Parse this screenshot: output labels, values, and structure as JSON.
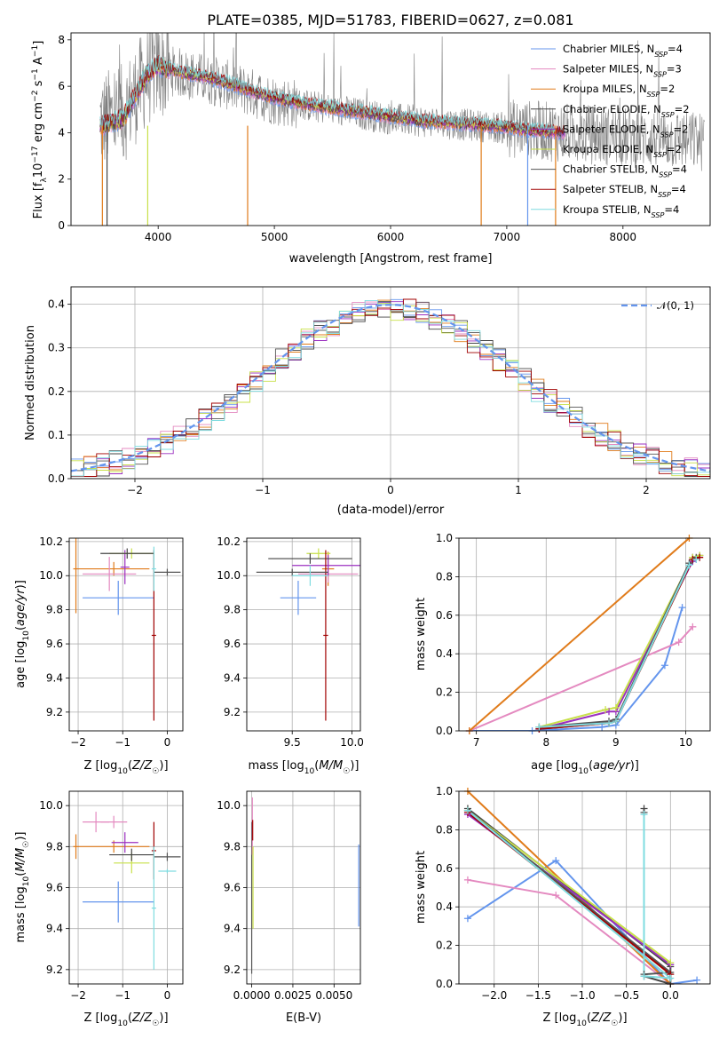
{
  "chart_data": [
    {
      "type": "line",
      "title": "PLATE=0385, MJD=51783, FIBERID=0627, z=0.081",
      "xlabel": "wavelength [Angstrom, rest frame]",
      "ylabel": "Flux [f_λ 10^-17 erg cm^-2 s^-1 A^-1]",
      "xlim": [
        3250,
        8750
      ],
      "ylim": [
        0,
        8.3
      ],
      "xticks": [
        "4000",
        "5000",
        "6000",
        "7000",
        "8000"
      ],
      "yticks": [
        "0",
        "2",
        "4",
        "6",
        "8"
      ],
      "grid": false,
      "legend_position": "top-right",
      "data_range": [
        3500,
        8700
      ],
      "series": [
        {
          "name": "Chabrier MILES, N_SSP=4",
          "color": "#6495ed"
        },
        {
          "name": "Salpeter MILES, N_SSP=3",
          "color": "#e48ac0"
        },
        {
          "name": "Kroupa MILES, N_SSP=2",
          "color": "#e07b1a"
        },
        {
          "name": "Chabrier ELODIE, N_SSP=2",
          "color": "#444444"
        },
        {
          "name": "Salpeter ELODIE, N_SSP=2",
          "color": "#9b30c0"
        },
        {
          "name": "Kroupa ELODIE, N_SSP=2",
          "color": "#c8e04a"
        },
        {
          "name": "Chabrier STELIB, N_SSP=4",
          "color": "#555555"
        },
        {
          "name": "Salpeter STELIB, N_SSP=4",
          "color": "#a00000"
        },
        {
          "name": "Kroupa STELIB, N_SSP=4",
          "color": "#7fdce0"
        }
      ],
      "continuum": {
        "x": [
          3500,
          3700,
          3900,
          4000,
          4200,
          4500,
          4800,
          5000,
          5300,
          5600,
          6000,
          6300,
          6600,
          6900,
          7200,
          7500
        ],
        "y": [
          4.3,
          4.6,
          6.5,
          6.9,
          6.6,
          6.3,
          5.8,
          5.5,
          5.2,
          5.0,
          4.7,
          4.5,
          4.4,
          4.3,
          4.1,
          4.0
        ]
      },
      "observed_continuum": {
        "x": [
          3500,
          3700,
          3900,
          4000,
          4500,
          5000,
          5500,
          6000,
          6500,
          7000,
          7500,
          8000,
          8500,
          8700
        ],
        "y": [
          4.5,
          4.8,
          6.4,
          6.8,
          6.2,
          5.4,
          5.0,
          4.6,
          4.4,
          4.2,
          4.0,
          3.8,
          3.7,
          3.6
        ]
      },
      "dropouts": [
        {
          "x": 3520,
          "color": "#e07b1a"
        },
        {
          "x": 3560,
          "color": "#444444"
        },
        {
          "x": 3910,
          "color": "#c8e04a"
        },
        {
          "x": 4770,
          "color": "#e07b1a"
        },
        {
          "x": 6780,
          "color": "#e07b1a"
        },
        {
          "x": 7180,
          "color": "#6495ed"
        },
        {
          "x": 7420,
          "color": "#e07b1a"
        }
      ]
    },
    {
      "type": "line",
      "xlabel": "(data-model)/error",
      "ylabel": "Normed distribution",
      "xlim": [
        -2.5,
        2.5
      ],
      "ylim": [
        0,
        0.44
      ],
      "xticks": [
        "−2",
        "−1",
        "0",
        "1",
        "2"
      ],
      "yticks": [
        "0.0",
        "0.1",
        "0.2",
        "0.3",
        "0.4"
      ],
      "grid": true,
      "legend_position": "top-right",
      "series": [
        {
          "name": "𝒩(0, 1)",
          "color": "#6495ed",
          "style": "dashed",
          "function": "normal_pdf",
          "mu": 0,
          "sigma": 1
        }
      ],
      "histogram_bin_width": 0.1,
      "histogram_colors": [
        "#6495ed",
        "#e48ac0",
        "#e07b1a",
        "#444444",
        "#9b30c0",
        "#c8e04a",
        "#555555",
        "#a00000",
        "#7fdce0"
      ]
    },
    {
      "type": "scatter",
      "xlabel": "Z [log10(Z/Z☉)]",
      "ylabel": "age [log10(age/yr)]",
      "xlim": [
        -2.2,
        0.35
      ],
      "ylim": [
        9.09,
        10.22
      ],
      "xticks": [
        "−2",
        "−1",
        "0"
      ],
      "yticks": [
        "9.2",
        "9.4",
        "9.6",
        "9.8",
        "10.0",
        "10.2"
      ],
      "grid": true,
      "points": [
        {
          "x": -1.1,
          "y": 9.87,
          "xerr": 0.8,
          "yerr": 0.1,
          "color": "#6495ed"
        },
        {
          "x": -2.05,
          "y": 10.04,
          "xerr": 0.06,
          "yerr": 0.26,
          "color": "#e07b1a"
        },
        {
          "x": -1.2,
          "y": 10.04,
          "xerr": 0.8,
          "yerr": 0.04,
          "color": "#e07b1a"
        },
        {
          "x": -1.3,
          "y": 10.01,
          "xerr": 0.6,
          "yerr": 0.1,
          "color": "#e48ac0"
        },
        {
          "x": -0.95,
          "y": 10.05,
          "xerr": 0.1,
          "yerr": 0.1,
          "color": "#9b30c0"
        },
        {
          "x": -0.8,
          "y": 10.13,
          "xerr": 0.5,
          "yerr": 0.03,
          "color": "#c8e04a"
        },
        {
          "x": -0.9,
          "y": 10.13,
          "xerr": 0.6,
          "yerr": 0.03,
          "color": "#444444"
        },
        {
          "x": -0.3,
          "y": 9.65,
          "xerr": 0.05,
          "yerr": 0.5,
          "color": "#a00000"
        },
        {
          "x": 0.0,
          "y": 10.02,
          "xerr": 0.3,
          "yerr": 0.02,
          "color": "#555555"
        },
        {
          "x": -0.3,
          "y": 10.04,
          "xerr": 0.05,
          "yerr": 0.13,
          "color": "#7fdce0"
        }
      ]
    },
    {
      "type": "scatter",
      "xlabel": "mass [log10(M/M☉)]",
      "ylabel": "",
      "xlim": [
        9.12,
        10.07
      ],
      "ylim": [
        9.09,
        10.22
      ],
      "xticks": [
        "9.5",
        "10.0"
      ],
      "yticks": [
        "9.2",
        "9.4",
        "9.6",
        "9.8",
        "10.0",
        "10.2"
      ],
      "grid": true,
      "points": [
        {
          "x": 9.55,
          "y": 9.87,
          "xerr": 0.15,
          "yerr": 0.1,
          "color": "#6495ed"
        },
        {
          "x": 9.8,
          "y": 10.04,
          "xerr": 0.05,
          "yerr": 0.1,
          "color": "#e07b1a"
        },
        {
          "x": 9.8,
          "y": 10.01,
          "xerr": 0.25,
          "yerr": 0.05,
          "color": "#e48ac0"
        },
        {
          "x": 9.8,
          "y": 10.06,
          "xerr": 0.3,
          "yerr": 0.06,
          "color": "#9b30c0"
        },
        {
          "x": 9.72,
          "y": 10.13,
          "xerr": 0.1,
          "yerr": 0.03,
          "color": "#c8e04a"
        },
        {
          "x": 9.65,
          "y": 10.1,
          "xerr": 0.35,
          "yerr": 0.03,
          "color": "#444444"
        },
        {
          "x": 9.78,
          "y": 9.65,
          "xerr": 0.02,
          "yerr": 0.5,
          "color": "#a00000"
        },
        {
          "x": 9.5,
          "y": 10.02,
          "xerr": 0.3,
          "yerr": 0.02,
          "color": "#555555"
        },
        {
          "x": 9.65,
          "y": 10.0,
          "xerr": 0.15,
          "yerr": 0.06,
          "color": "#7fdce0"
        }
      ]
    },
    {
      "type": "line",
      "xlabel": "age [log10(age/yr)]",
      "ylabel": "mass weight",
      "xlim": [
        6.75,
        10.35
      ],
      "ylim": [
        0,
        1.0
      ],
      "xticks": [
        "7",
        "8",
        "9",
        "10"
      ],
      "yticks": [
        "0.0",
        "0.2",
        "0.4",
        "0.6",
        "0.8",
        "1.0"
      ],
      "grid": true,
      "series": [
        {
          "color": "#6495ed",
          "x": [
            6.9,
            7.8,
            8.8,
            9.0,
            9.7,
            9.95
          ],
          "y": [
            0.0,
            0.0,
            0.02,
            0.03,
            0.34,
            0.64
          ]
        },
        {
          "color": "#e48ac0",
          "x": [
            6.9,
            9.9,
            10.1
          ],
          "y": [
            0.0,
            0.46,
            0.54
          ]
        },
        {
          "color": "#e07b1a",
          "x": [
            6.9,
            10.05
          ],
          "y": [
            0.0,
            1.0
          ]
        },
        {
          "color": "#444444",
          "x": [
            7.9,
            8.9,
            9.0,
            10.1,
            10.2
          ],
          "y": [
            0.01,
            0.04,
            0.05,
            0.9,
            0.91
          ]
        },
        {
          "color": "#9b30c0",
          "x": [
            7.9,
            8.9,
            9.0,
            10.1,
            10.15
          ],
          "y": [
            0.01,
            0.1,
            0.1,
            0.88,
            0.89
          ]
        },
        {
          "color": "#c8e04a",
          "x": [
            7.9,
            8.85,
            9.0,
            10.1,
            10.2
          ],
          "y": [
            0.02,
            0.11,
            0.12,
            0.9,
            0.91
          ]
        },
        {
          "color": "#555555",
          "x": [
            7.9,
            8.9,
            9.0,
            10.05,
            10.15
          ],
          "y": [
            0.02,
            0.05,
            0.06,
            0.87,
            0.9
          ]
        },
        {
          "color": "#a00000",
          "x": [
            7.9,
            8.9,
            9.0,
            10.1,
            10.2
          ],
          "y": [
            0.01,
            0.04,
            0.05,
            0.89,
            0.9
          ]
        },
        {
          "color": "#7fdce0",
          "x": [
            7.9,
            8.9,
            9.0,
            10.05,
            10.15
          ],
          "y": [
            0.02,
            0.04,
            0.05,
            0.86,
            0.89
          ]
        }
      ]
    },
    {
      "type": "scatter",
      "xlabel": "Z [log10(Z/Z☉)]",
      "ylabel": "mass [log10(M/M☉)]",
      "xlim": [
        -2.2,
        0.35
      ],
      "ylim": [
        9.13,
        10.07
      ],
      "xticks": [
        "−2",
        "−1",
        "0"
      ],
      "yticks": [
        "9.2",
        "9.4",
        "9.6",
        "9.8",
        "10.0"
      ],
      "grid": true,
      "points": [
        {
          "x": -1.1,
          "y": 9.53,
          "xerr": 0.8,
          "yerr": 0.1,
          "color": "#6495ed"
        },
        {
          "x": -2.05,
          "y": 9.8,
          "xerr": 0.06,
          "yerr": 0.06,
          "color": "#e07b1a"
        },
        {
          "x": -1.2,
          "y": 9.8,
          "xerr": 0.8,
          "yerr": 0.03,
          "color": "#e07b1a"
        },
        {
          "x": -1.6,
          "y": 9.92,
          "xerr": 0.3,
          "yerr": 0.05,
          "color": "#e48ac0"
        },
        {
          "x": -1.2,
          "y": 9.92,
          "xerr": 0.3,
          "yerr": 0.03,
          "color": "#e48ac0"
        },
        {
          "x": -0.95,
          "y": 9.82,
          "xerr": 0.3,
          "yerr": 0.05,
          "color": "#9b30c0"
        },
        {
          "x": -0.8,
          "y": 9.72,
          "xerr": 0.4,
          "yerr": 0.05,
          "color": "#c8e04a"
        },
        {
          "x": -0.8,
          "y": 9.76,
          "xerr": 0.5,
          "yerr": 0.03,
          "color": "#444444"
        },
        {
          "x": -0.3,
          "y": 9.78,
          "xerr": 0.05,
          "yerr": 0.14,
          "color": "#a00000"
        },
        {
          "x": 0.0,
          "y": 9.75,
          "xerr": 0.3,
          "yerr": 0.02,
          "color": "#555555"
        },
        {
          "x": -0.3,
          "y": 9.5,
          "xerr": 0.05,
          "yerr": 0.3,
          "color": "#7fdce0"
        },
        {
          "x": 0.0,
          "y": 9.68,
          "xerr": 0.2,
          "yerr": 0.01,
          "color": "#7fdce0"
        }
      ]
    },
    {
      "type": "scatter",
      "xlabel": "E(B-V)",
      "ylabel": "",
      "xlim": [
        -0.0003,
        0.0066
      ],
      "ylim": [
        9.13,
        10.07
      ],
      "xticks": [
        "0.0000",
        "0.0025",
        "0.0050"
      ],
      "yticks": [
        "9.2",
        "9.4",
        "9.6",
        "9.8",
        "10.0"
      ],
      "grid": true,
      "points": [
        {
          "x": 0.0,
          "y": 9.55,
          "xerr": 0.0,
          "yerr": 0.37,
          "color": "#555555"
        },
        {
          "x": 4e-05,
          "y": 9.9,
          "xerr": 0.0,
          "yerr": 0.14,
          "color": "#e48ac0"
        },
        {
          "x": 6e-05,
          "y": 9.88,
          "xerr": 0.0,
          "yerr": 0.05,
          "color": "#a00000"
        },
        {
          "x": 8e-05,
          "y": 9.6,
          "xerr": 0.0,
          "yerr": 0.2,
          "color": "#c8e04a"
        },
        {
          "x": 0.0065,
          "y": 9.61,
          "xerr": 0.0,
          "yerr": 0.2,
          "color": "#6495ed"
        }
      ]
    },
    {
      "type": "line",
      "xlabel": "Z [log10(Z/Z☉)]",
      "ylabel": "mass weight",
      "xlim": [
        -2.4,
        0.45
      ],
      "ylim": [
        0,
        1.0
      ],
      "xticks": [
        "−2.0",
        "−1.5",
        "−1.0",
        "−0.5",
        "0.0"
      ],
      "yticks": [
        "0.0",
        "0.2",
        "0.4",
        "0.6",
        "0.8",
        "1.0"
      ],
      "grid": true,
      "series": [
        {
          "color": "#6495ed",
          "x": [
            -2.3,
            -1.3,
            0.0,
            0.3
          ],
          "y": [
            0.34,
            0.64,
            0.0,
            0.02
          ]
        },
        {
          "color": "#e48ac0",
          "x": [
            -2.3,
            -1.3,
            0.0
          ],
          "y": [
            0.54,
            0.46,
            0.0
          ]
        },
        {
          "color": "#e07b1a",
          "x": [
            -2.3,
            0.0
          ],
          "y": [
            1.0,
            0.0
          ]
        },
        {
          "color": "#444444",
          "x": [
            -2.3,
            0.0,
            0.0,
            -0.3,
            -0.3
          ],
          "y": [
            0.91,
            0.09,
            0.0,
            0.04,
            0.91
          ]
        },
        {
          "color": "#9b30c0",
          "x": [
            -2.3,
            0.0
          ],
          "y": [
            0.88,
            0.1
          ]
        },
        {
          "color": "#c8e04a",
          "x": [
            -2.3,
            0.0
          ],
          "y": [
            0.9,
            0.11
          ]
        },
        {
          "color": "#555555",
          "x": [
            -2.3,
            0.0,
            -0.3,
            -0.3
          ],
          "y": [
            0.9,
            0.06,
            0.05,
            0.89
          ]
        },
        {
          "color": "#a00000",
          "x": [
            -2.3,
            0.0
          ],
          "y": [
            0.89,
            0.05
          ]
        },
        {
          "color": "#7fdce0",
          "x": [
            -2.3,
            0.0,
            -0.3,
            -0.3
          ],
          "y": [
            0.9,
            0.03,
            0.04,
            0.88
          ]
        }
      ]
    }
  ]
}
